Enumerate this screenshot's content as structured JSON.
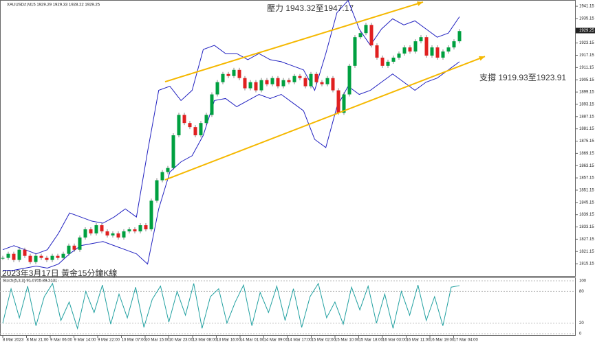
{
  "chart_data": {
    "type": "candlestick",
    "title": "XAUUSD#,M15  1929.29 1929.33 1928.22 1929.25",
    "annotations": [
      "壓力 1943.32至1947.17",
      "支撐 1919.93至1923.91",
      "2023年3月17日 黃金15分鐘K線"
    ],
    "ylim": [
      1808.8,
      1944.2
    ],
    "yticks": [
      1815.15,
      1821.15,
      1827.15,
      1833.15,
      1839.15,
      1845.15,
      1851.15,
      1857.15,
      1863.15,
      1869.15,
      1875.15,
      1881.15,
      1887.15,
      1893.15,
      1899.15,
      1905.15,
      1911.15,
      1917.15,
      1923.15,
      1935.15,
      1941.15
    ],
    "last_price": 1929.25,
    "x_labels": [
      "8 Mar 2023",
      "8 Mar 21:00",
      "9 Mar 06:00",
      "9 Mar 14:00",
      "9 Mar 22:00",
      "10 Mar 07:00",
      "10 Mar 15:00",
      "10 Mar 23:00",
      "13 Mar 08:00",
      "13 Mar 16:00",
      "14 Mar 01:00",
      "14 Mar 09:00",
      "14 Mar 17:00",
      "15 Mar 02:00",
      "15 Mar 10:00",
      "15 Mar 18:00",
      "16 Mar 03:00",
      "16 Mar 11:00",
      "16 Mar 19:00",
      "17 Mar 04:00"
    ],
    "series": [
      {
        "name": "XAUUSD#",
        "up_color": "#00a040",
        "down_color": "#e02020",
        "values": [
          1818,
          1820,
          1817,
          1822,
          1819,
          1816,
          1819,
          1818,
          1817,
          1819,
          1818,
          1820,
          1824,
          1822,
          1828,
          1832,
          1830,
          1834,
          1831,
          1829,
          1830,
          1828,
          1831,
          1832,
          1831,
          1834,
          1832,
          1846,
          1856,
          1860,
          1862,
          1878,
          1888,
          1884,
          1882,
          1878,
          1884,
          1888,
          1898,
          1904,
          1908,
          1907,
          1910,
          1906,
          1901,
          1904,
          1900,
          1905,
          1903,
          1906,
          1902,
          1905,
          1904,
          1907,
          1906,
          1902,
          1908,
          1904,
          1903,
          1906,
          1900,
          1889,
          1898,
          1912,
          1926,
          1928,
          1932,
          1922,
          1916,
          1912,
          1914,
          1916,
          1918,
          1921,
          1919,
          1924,
          1926,
          1917,
          1921,
          1916,
          1919,
          1921,
          1924,
          1929
        ]
      },
      {
        "name": "BB upper",
        "color": "#2020c0",
        "values": [
          1822,
          1824,
          1822,
          1820,
          1822,
          1830,
          1840,
          1838,
          1836,
          1835,
          1838,
          1842,
          1838,
          1870,
          1900,
          1902,
          1895,
          1900,
          1920,
          1922,
          1918,
          1918,
          1915,
          1918,
          1915,
          1914,
          1912,
          1910,
          1900,
          1918,
          1938,
          1944,
          1930,
          1922,
          1930,
          1935,
          1932,
          1934,
          1930,
          1926,
          1928,
          1936
        ]
      },
      {
        "name": "BB lower",
        "color": "#2020c0",
        "values": [
          1812,
          1812,
          1813,
          1814,
          1813,
          1815,
          1820,
          1824,
          1825,
          1826,
          1824,
          1822,
          1820,
          1815,
          1842,
          1860,
          1865,
          1868,
          1878,
          1895,
          1896,
          1892,
          1895,
          1898,
          1896,
          1898,
          1894,
          1890,
          1876,
          1872,
          1892,
          1902,
          1898,
          1900,
          1904,
          1908,
          1904,
          1900,
          1904,
          1906,
          1910,
          1914
        ]
      }
    ],
    "trend_lines": [
      {
        "color": "#f5b800",
        "values": [
          1904.2,
          1943.2
        ]
      },
      {
        "color": "#f5b800",
        "values": [
          1856.2,
          1916.6
        ]
      }
    ],
    "stochastic": {
      "title": "Stoch(5,3,3) 91.0705 89.3131",
      "ylim": [
        0,
        100
      ],
      "yticks": [
        0,
        20,
        80,
        100
      ],
      "color": "#20a0a0",
      "values": [
        20,
        85,
        30,
        90,
        15,
        70,
        95,
        25,
        60,
        10,
        80,
        40,
        92,
        18,
        75,
        30,
        88,
        12,
        65,
        90,
        22,
        80,
        35,
        95,
        10,
        70,
        85,
        20,
        60,
        92,
        15,
        78,
        40,
        90,
        25,
        85,
        12,
        70,
        95,
        30,
        60,
        18,
        88,
        45,
        90,
        20,
        75,
        10,
        80,
        35,
        92,
        25,
        70,
        15,
        88,
        91
      ]
    }
  }
}
